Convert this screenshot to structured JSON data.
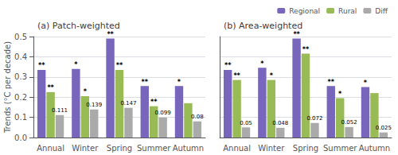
{
  "chart_data": [
    {
      "type": "bar",
      "title": "(a) Patch-weighted",
      "categories": [
        "Annual",
        "Winter",
        "Spring",
        "Summer",
        "Autumn"
      ],
      "ylabel": "Trends (°C per decade)",
      "ylim": [
        0,
        0.5
      ],
      "yticks": [
        {
          "value": 0.0,
          "label": "0.0"
        },
        0.1,
        0.2,
        0.3,
        0.4,
        0.5
      ],
      "grid": true,
      "series": [
        {
          "name": "Regional",
          "color": "#7766bb",
          "values": [
            0.335,
            0.34,
            0.49,
            0.255,
            0.255
          ],
          "annotations": [
            "**",
            "*",
            "**",
            "**",
            "*"
          ]
        },
        {
          "name": "Rural",
          "color": "#99bb55",
          "values": [
            0.225,
            0.205,
            0.335,
            0.155,
            0.17
          ],
          "annotations": [
            "**",
            "*",
            "**",
            "**",
            null
          ]
        },
        {
          "name": "Diff",
          "color": "#aaaaaa",
          "values": [
            0.111,
            0.139,
            0.147,
            0.099,
            0.08
          ],
          "data_labels": true
        }
      ]
    },
    {
      "type": "bar",
      "title": "(b) Area-weighted",
      "categories": [
        "Annual",
        "Winter",
        "Spring",
        "Summer",
        "Autumn"
      ],
      "ylim": [
        0,
        0.5
      ],
      "yticks": [
        {
          "value": 0.0,
          "label": "0.0"
        },
        0.1,
        0.2,
        0.3,
        0.4,
        0.5
      ],
      "grid": true,
      "tick_labels": "x",
      "legend": "upper right",
      "series": [
        {
          "name": "Regional",
          "color": "#7766bb",
          "values": [
            0.335,
            0.345,
            0.49,
            0.255,
            0.25
          ],
          "annotations": [
            "**",
            "*",
            "**",
            "**",
            "*"
          ]
        },
        {
          "name": "Rural",
          "color": "#99bb55",
          "values": [
            0.285,
            0.285,
            0.415,
            0.195,
            0.22
          ],
          "annotations": [
            "**",
            "*",
            "**",
            "*",
            null
          ]
        },
        {
          "name": "Diff",
          "color": "#aaaaaa",
          "values": [
            0.05,
            0.048,
            0.072,
            0.052,
            0.025
          ],
          "data_labels": true
        }
      ]
    }
  ]
}
